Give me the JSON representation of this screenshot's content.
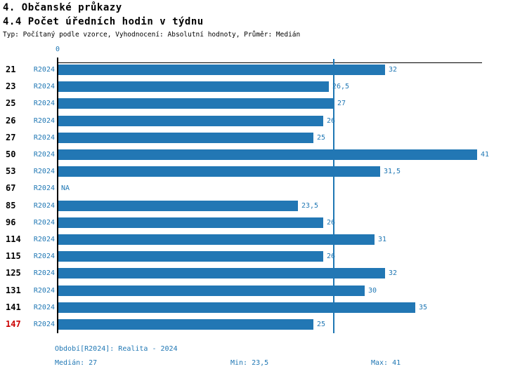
{
  "header": {
    "title": "4. Občanské průkazy",
    "subtitle": "4.4 Počet úředních hodin v týdnu",
    "meta": "Typ: Počítaný podle vzorce, Vyhodnocení: Absolutní hodnoty, Průměr: Medián"
  },
  "chart_data": {
    "type": "bar",
    "orientation": "horizontal",
    "title": "4.4 Počet úředních hodin v týdnu",
    "categories": [
      "21",
      "23",
      "25",
      "26",
      "27",
      "50",
      "53",
      "67",
      "85",
      "96",
      "114",
      "115",
      "125",
      "131",
      "141",
      "147"
    ],
    "series": [
      {
        "name": "R2024",
        "values": [
          32,
          26.5,
          27,
          26,
          25,
          41,
          31.5,
          null,
          23.5,
          26,
          31,
          26,
          32,
          30,
          35,
          25
        ],
        "value_labels": [
          "32",
          "26,5",
          "27",
          "26",
          "25",
          "41",
          "31,5",
          "NA",
          "23,5",
          "26",
          "31",
          "26",
          "32",
          "30",
          "35",
          "25"
        ]
      }
    ],
    "na_label": "NA",
    "xlim": [
      0,
      41.5
    ],
    "x_tick_labels": [
      "0"
    ],
    "median_line_value": 27,
    "highlight_category": "147",
    "median": 27,
    "min": 23.5,
    "max": 41,
    "grid": false,
    "legend_position": "none"
  },
  "footer": {
    "period": "Období[R2024]: Realita - 2024",
    "median": "Medián: 27",
    "min": "Min: 23,5",
    "max": "Max: 41"
  },
  "colors": {
    "bar": "#2277B4",
    "accent_text": "#1F77B4",
    "highlight_text": "#CC0000",
    "axis": "#000000"
  }
}
